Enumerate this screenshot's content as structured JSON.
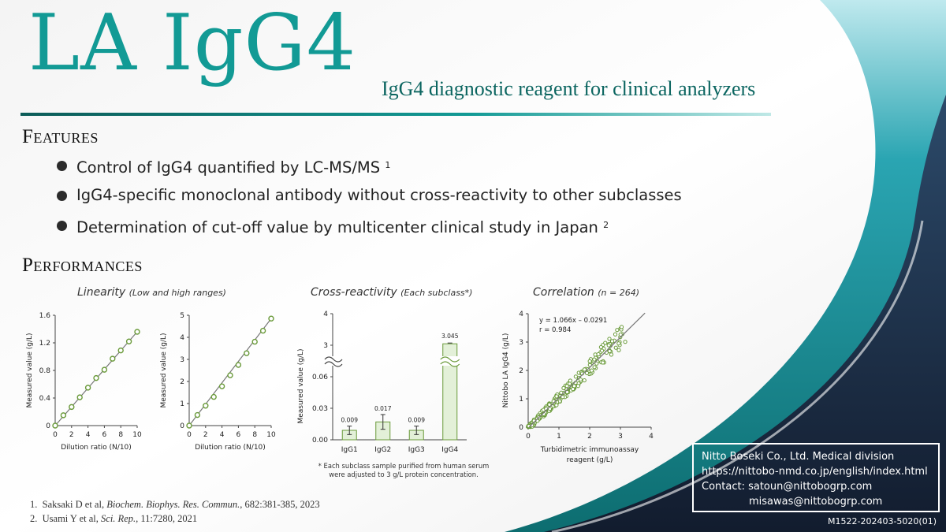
{
  "header": {
    "title": "LA IgG4",
    "subtitle": "IgG4 diagnostic reagent for clinical analyzers"
  },
  "features": {
    "heading_cap": "F",
    "heading_rest": "EATURES",
    "items": [
      {
        "text": "Control of IgG4 quantified by LC-MS/MS",
        "sup": "1"
      },
      {
        "text": "IgG4-specific monoclonal antibody without cross-reactivity to other subclasses",
        "sup": ""
      },
      {
        "text": "Determination of cut-off value by multicenter clinical study in Japan",
        "sup": "2"
      }
    ]
  },
  "performances": {
    "heading_cap": "P",
    "heading_rest": "ERFORMANCES",
    "linearity_title": "Linearity",
    "linearity_sub": "(Low and high ranges)",
    "cross_title": "Cross-reactivity",
    "cross_sub": "(Each subclass*)",
    "corr_title": "Correlation",
    "corr_sub": "(n = 264)",
    "footnote_line1": "* Each subclass sample purified from human serum",
    "footnote_line2": "were adjusted to 3 g/L protein concentration."
  },
  "chart_data": [
    {
      "type": "scatter",
      "title": "Linearity (Low and high ranges)",
      "xlabel": "Dilution ratio (N/10)",
      "ylabel": "Measured value (g/L)",
      "xlim": [
        0,
        10
      ],
      "ylim": [
        0,
        1.6
      ],
      "xticks": [
        "0",
        "2",
        "4",
        "6",
        "8",
        "10"
      ],
      "yticks": [
        "0",
        "0.4",
        "0.8",
        "1.2",
        "1.6"
      ],
      "x": [
        0,
        1,
        2,
        3,
        4,
        5,
        6,
        7,
        8,
        9,
        10
      ],
      "y": [
        0,
        0.15,
        0.27,
        0.41,
        0.55,
        0.69,
        0.81,
        0.97,
        1.09,
        1.22,
        1.36
      ],
      "trendline": true
    },
    {
      "type": "scatter",
      "title": "Linearity (Low and high ranges)",
      "xlabel": "Dilution ratio (N/10)",
      "ylabel": "Measured value (g/L)",
      "xlim": [
        0,
        10
      ],
      "ylim": [
        0,
        5
      ],
      "xticks": [
        "0",
        "2",
        "4",
        "6",
        "8",
        "10"
      ],
      "yticks": [
        "0",
        "1",
        "2",
        "3",
        "4",
        "5"
      ],
      "x": [
        0,
        1,
        2,
        3,
        4,
        5,
        6,
        7,
        8,
        9,
        10
      ],
      "y": [
        0,
        0.48,
        0.9,
        1.3,
        1.78,
        2.28,
        2.75,
        3.28,
        3.8,
        4.3,
        4.85
      ],
      "trendline": true
    },
    {
      "type": "bar",
      "title": "Cross-reactivity (Each subclass*)",
      "ylabel": "Measured value (g/L)",
      "categories": [
        "IgG1",
        "IgG2",
        "IgG3",
        "IgG4"
      ],
      "values": [
        0.009,
        0.017,
        0.009,
        3.045
      ],
      "data_labels": [
        "0.009",
        "0.017",
        "0.009",
        "3.045"
      ],
      "errors": [
        0.004,
        0.007,
        0.004,
        0.005
      ],
      "yticks_low": [
        "0.00",
        "0.03",
        "0.06"
      ],
      "yticks_high": [
        "3",
        "4"
      ],
      "broken_axis": true
    },
    {
      "type": "scatter",
      "title": "Correlation (n = 264)",
      "xlabel": "Turbidimetric immunoassay reagent (g/L)",
      "ylabel": "Nittobo LA IgG4 (g/L)",
      "xlim": [
        0,
        4
      ],
      "ylim": [
        0,
        4
      ],
      "xticks": [
        "0",
        "1",
        "2",
        "3",
        "4"
      ],
      "yticks": [
        "0",
        "1",
        "2",
        "3",
        "4"
      ],
      "equation": "y = 1.066x – 0.0291",
      "r_text": "r = 0.984",
      "slope": 1.066,
      "intercept": -0.0291,
      "n": 264
    }
  ],
  "references": [
    {
      "num": "1.",
      "authors": "Saksaki D et al, ",
      "journal": "Biochem. Biophys. Res. Commun.,",
      "rest": " 682:381-385, 2023"
    },
    {
      "num": "2.",
      "authors": "Usami Y et al, ",
      "journal": "Sci. Rep.,",
      "rest": " 11:7280, 2021"
    }
  ],
  "contact": {
    "company": "Nitto Boseki Co., Ltd.  Medical division",
    "url": "https://nittobo-nmd.co.jp/english/index.html",
    "email1": "Contact: satoun@nittobogrp.com",
    "email2": "misawas@nittobogrp.com"
  },
  "doc_code": "M1522-202403-5020(01)",
  "colors": {
    "teal": "#129a95",
    "dark_teal": "#0b6560",
    "navy": "#1a2640",
    "green_marker": "#6a9a3a",
    "bar_fill": "#e3f0d8"
  }
}
